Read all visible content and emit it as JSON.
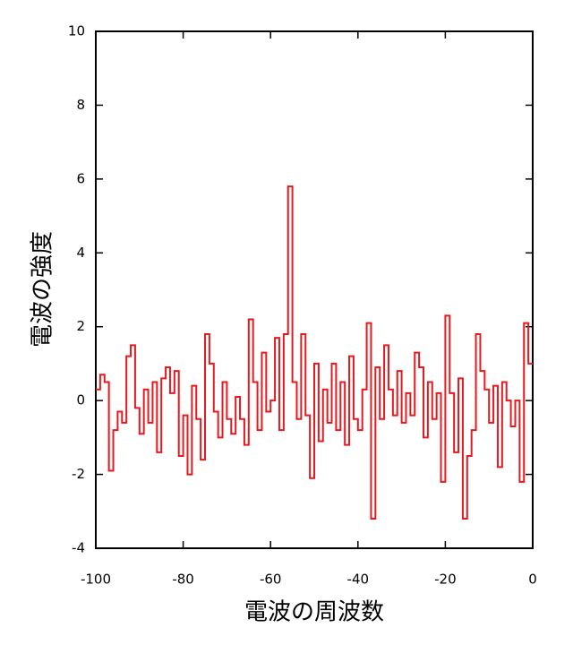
{
  "chart_data": {
    "type": "line",
    "step": true,
    "xlabel": "電波の周波数",
    "ylabel": "電波の強度",
    "x": [
      -100,
      -99,
      -98,
      -97,
      -96,
      -95,
      -94,
      -93,
      -92,
      -91,
      -90,
      -89,
      -88,
      -87,
      -86,
      -85,
      -84,
      -83,
      -82,
      -81,
      -80,
      -79,
      -78,
      -77,
      -76,
      -75,
      -74,
      -73,
      -72,
      -71,
      -70,
      -69,
      -68,
      -67,
      -66,
      -65,
      -64,
      -63,
      -62,
      -61,
      -60,
      -59,
      -58,
      -57,
      -56,
      -55,
      -54,
      -53,
      -52,
      -51,
      -50,
      -49,
      -48,
      -47,
      -46,
      -45,
      -44,
      -43,
      -42,
      -41,
      -40,
      -39,
      -38,
      -37,
      -36,
      -35,
      -34,
      -33,
      -32,
      -31,
      -30,
      -29,
      -28,
      -27,
      -26,
      -25,
      -24,
      -23,
      -22,
      -21,
      -20,
      -19,
      -18,
      -17,
      -16,
      -15,
      -14,
      -13,
      -12,
      -11,
      -10,
      -9,
      -8,
      -7,
      -6,
      -5,
      -4,
      -3,
      -2,
      -1
    ],
    "series": [
      {
        "color": "#e8191e",
        "values": [
          0.3,
          0.7,
          0.5,
          -1.9,
          -0.8,
          -0.3,
          -0.6,
          1.2,
          1.5,
          -0.2,
          -0.9,
          0.3,
          -0.6,
          0.5,
          -1.4,
          0.6,
          0.9,
          0.2,
          0.8,
          -1.5,
          -0.4,
          -2.0,
          0.4,
          -0.5,
          -1.6,
          1.8,
          1.0,
          -0.3,
          -1.0,
          0.5,
          -0.5,
          -0.9,
          0.1,
          -0.5,
          -1.2,
          2.2,
          0.5,
          -0.8,
          1.3,
          -0.3,
          0.0,
          1.7,
          -0.8,
          1.8,
          5.8,
          0.5,
          -0.5,
          1.8,
          -0.4,
          -2.1,
          1.0,
          -1.1,
          0.3,
          -0.6,
          1.0,
          -0.8,
          0.5,
          -1.2,
          1.2,
          -0.5,
          -0.8,
          0.3,
          2.1,
          -3.2,
          0.9,
          -0.5,
          1.5,
          0.3,
          -0.4,
          0.8,
          -0.6,
          0.2,
          -0.4,
          1.3,
          0.9,
          -1.0,
          0.5,
          -0.5,
          0.2,
          -2.2,
          2.3,
          0.2,
          -1.4,
          0.6,
          -3.2,
          -1.5,
          -0.8,
          1.8,
          0.8,
          0.3,
          -0.6,
          0.4,
          -1.8,
          0.5,
          0.0,
          -0.7,
          0.0,
          -2.2,
          2.1,
          1.0
        ]
      }
    ],
    "xlim": [
      -100,
      0
    ],
    "ylim": [
      -4,
      10
    ],
    "xticks": [
      -100,
      -80,
      -60,
      -40,
      -20,
      0
    ],
    "yticks": [
      -4,
      -2,
      0,
      2,
      4,
      6,
      8,
      10
    ]
  }
}
